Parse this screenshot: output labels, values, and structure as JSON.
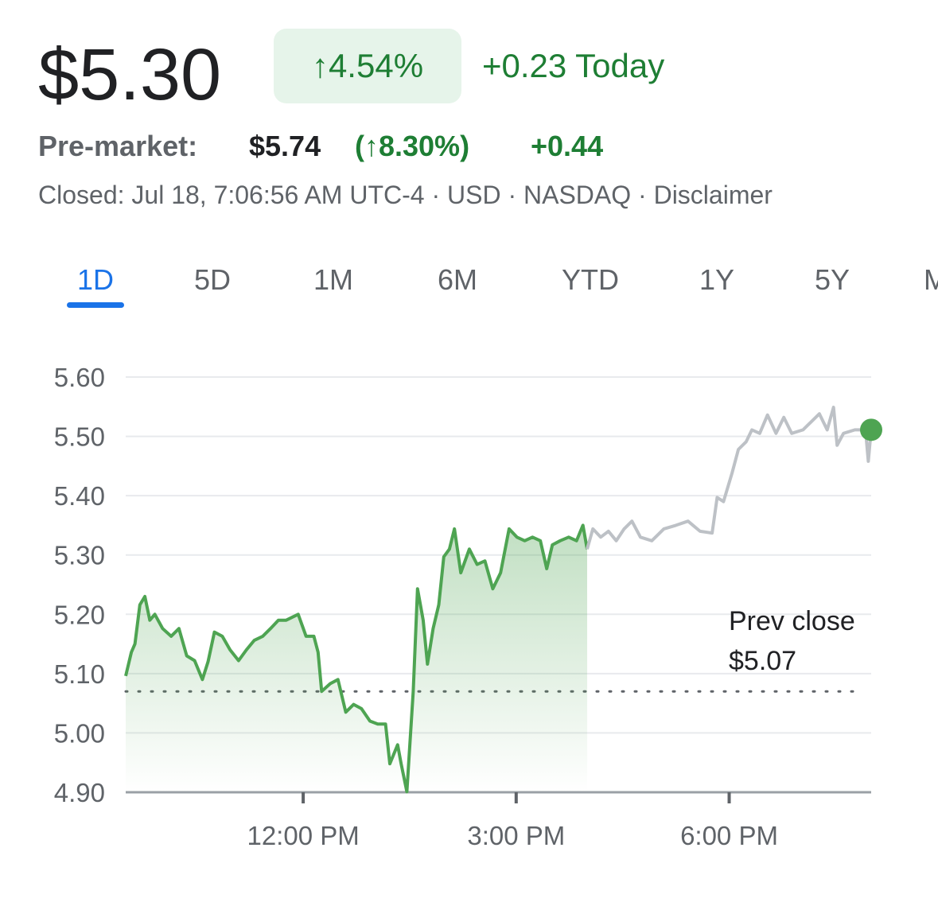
{
  "header": {
    "price": "$5.30",
    "change_percent": "↑4.54%",
    "change_today": "+0.23 Today",
    "premarket_label": "Pre-market:",
    "premarket_price": "$5.74",
    "premarket_percent": "(↑8.30%)",
    "premarket_change": "+0.44",
    "status": "Closed: Jul 18, 7:06:56 AM UTC-4 · USD · NASDAQ · Disclaimer"
  },
  "tabs": {
    "items": [
      "1D",
      "5D",
      "1M",
      "6M",
      "YTD",
      "1Y",
      "5Y",
      "MAX"
    ],
    "active": 0
  },
  "chart_data": {
    "type": "line",
    "xlim": [
      9.5,
      20
    ],
    "xticks": [
      {
        "value": 12,
        "label": "12:00 PM"
      },
      {
        "value": 15,
        "label": "3:00 PM"
      },
      {
        "value": 18,
        "label": "6:00 PM"
      }
    ],
    "ylim": [
      4.9,
      5.6
    ],
    "yticks": [
      {
        "value": 4.9,
        "label": "4.90"
      },
      {
        "value": 5.0,
        "label": "5.00"
      },
      {
        "value": 5.1,
        "label": "5.10"
      },
      {
        "value": 5.2,
        "label": "5.20"
      },
      {
        "value": 5.3,
        "label": "5.30"
      },
      {
        "value": 5.4,
        "label": "5.40"
      },
      {
        "value": 5.5,
        "label": "5.50"
      },
      {
        "value": 5.6,
        "label": "5.60"
      }
    ],
    "grid": true,
    "reference": {
      "text": "Prev close",
      "value": 5.07,
      "value_label": "$5.07"
    },
    "series": [
      {
        "color": "#4ea452",
        "fill": true,
        "x": [
          9.5,
          9.58,
          9.63,
          9.7,
          9.77,
          9.84,
          9.91,
          10.02,
          10.14,
          10.25,
          10.36,
          10.47,
          10.58,
          10.66,
          10.75,
          10.86,
          10.97,
          11.09,
          11.2,
          11.31,
          11.43,
          11.54,
          11.65,
          11.76,
          11.93,
          12.04,
          12.15,
          12.21,
          12.26,
          12.38,
          12.49,
          12.6,
          12.71,
          12.82,
          12.94,
          13.05,
          13.16,
          13.22,
          13.33,
          13.38,
          13.46,
          13.55,
          13.61,
          13.69,
          13.75,
          13.83,
          13.91,
          13.98,
          14.06,
          14.13,
          14.22,
          14.34,
          14.45,
          14.56,
          14.67,
          14.78,
          14.9,
          15.01,
          15.12,
          15.23,
          15.34,
          15.43,
          15.51,
          15.62,
          15.74,
          15.85,
          15.94,
          16.0
        ],
        "values": [
          5.096,
          5.136,
          5.15,
          5.216,
          5.23,
          5.19,
          5.2,
          5.176,
          5.163,
          5.176,
          5.13,
          5.122,
          5.09,
          5.12,
          5.17,
          5.163,
          5.14,
          5.122,
          5.14,
          5.156,
          5.163,
          5.176,
          5.19,
          5.19,
          5.2,
          5.163,
          5.163,
          5.136,
          5.07,
          5.083,
          5.09,
          5.035,
          5.048,
          5.041,
          5.02,
          5.015,
          5.015,
          4.948,
          4.98,
          4.948,
          4.901,
          5.07,
          5.243,
          5.19,
          5.116,
          5.176,
          5.216,
          5.297,
          5.31,
          5.344,
          5.27,
          5.31,
          5.284,
          5.29,
          5.243,
          5.27,
          5.344,
          5.33,
          5.324,
          5.33,
          5.324,
          5.277,
          5.317,
          5.324,
          5.33,
          5.324,
          5.35,
          5.31
        ]
      },
      {
        "color": "#bdc1c6",
        "fill": false,
        "end_dot": "#4ea452",
        "x": [
          16.0,
          16.08,
          16.19,
          16.3,
          16.41,
          16.52,
          16.63,
          16.75,
          16.91,
          17.08,
          17.25,
          17.42,
          17.59,
          17.76,
          17.83,
          17.92,
          18.04,
          18.13,
          18.24,
          18.32,
          18.43,
          18.54,
          18.66,
          18.77,
          18.88,
          19.04,
          19.16,
          19.27,
          19.38,
          19.47,
          19.52,
          19.61,
          19.77,
          19.92,
          19.96,
          20.0
        ],
        "values": [
          5.31,
          5.344,
          5.33,
          5.34,
          5.324,
          5.344,
          5.357,
          5.33,
          5.324,
          5.344,
          5.35,
          5.357,
          5.34,
          5.337,
          5.397,
          5.39,
          5.438,
          5.478,
          5.491,
          5.511,
          5.505,
          5.536,
          5.505,
          5.532,
          5.505,
          5.511,
          5.525,
          5.538,
          5.511,
          5.549,
          5.485,
          5.505,
          5.511,
          5.511,
          5.458,
          5.511
        ]
      }
    ]
  }
}
